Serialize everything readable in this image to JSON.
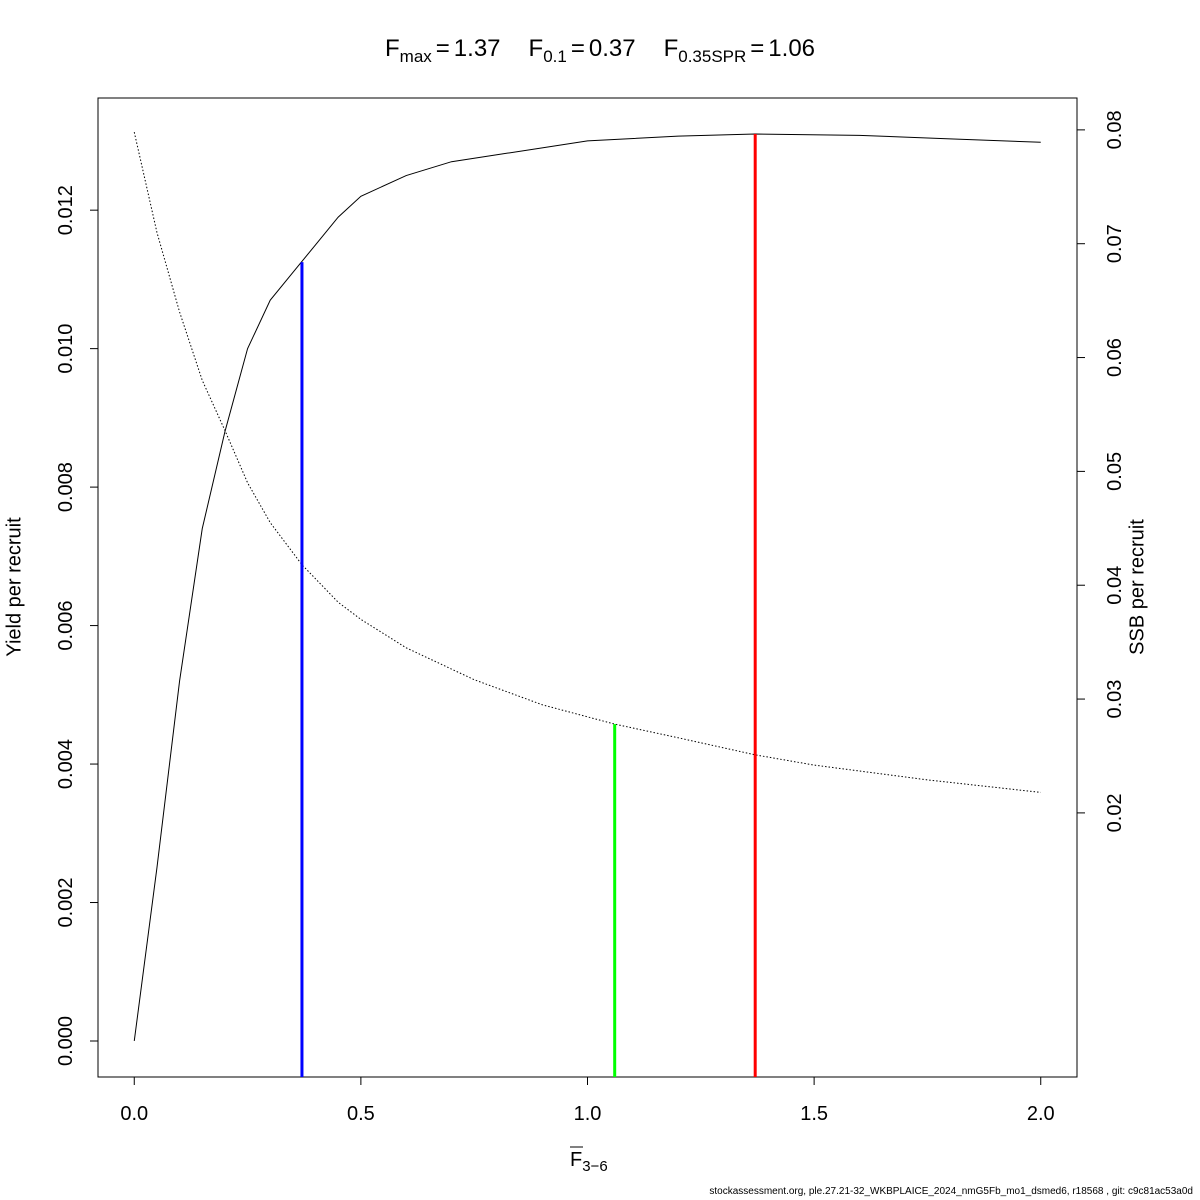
{
  "chart_data": {
    "type": "line",
    "title_parts": [
      {
        "symbol": "F",
        "subscript": "max",
        "relation": "=",
        "value": 1.37
      },
      {
        "symbol": "F",
        "subscript": "0.1",
        "relation": "=",
        "value": 0.37
      },
      {
        "symbol": "F",
        "subscript": "0.35SPR",
        "relation": "=",
        "value": 1.06
      }
    ],
    "x_label": {
      "symbol": "F",
      "subscript": "3−6"
    },
    "y_label": "Yield per recruit",
    "y2_label": "SSB per recruit",
    "footer": "stockassessment.org, ple.27.21-32_WKBPLAICE_2024_nmG5Fb_mo1_dsmed6, r18568 , git: c9c81ac53a0d",
    "xlim": [
      -0.08,
      2.08
    ],
    "ylim": [
      -0.00052,
      0.01362
    ],
    "y2lim": [
      -0.0032,
      0.0828
    ],
    "xticks": [
      {
        "value": 0,
        "label": "0.0"
      },
      0.5,
      {
        "value": 1,
        "label": "1.0"
      },
      1.5,
      {
        "value": 2,
        "label": "2.0"
      }
    ],
    "yticks": [
      {
        "value": 0,
        "label": "0.000"
      },
      {
        "value": 0.002,
        "label": "0.002"
      },
      {
        "value": 0.004,
        "label": "0.004"
      },
      {
        "value": 0.006,
        "label": "0.006"
      },
      {
        "value": 0.008,
        "label": "0.008"
      },
      {
        "value": 0.01,
        "label": "0.010"
      },
      {
        "value": 0.012,
        "label": "0.012"
      }
    ],
    "y2ticks": [
      0.02,
      0.03,
      0.04,
      0.05,
      0.06,
      0.07,
      0.08
    ],
    "series": [
      {
        "color": "#000000",
        "style": "solid",
        "x": [
          0,
          0.05,
          0.1,
          0.15,
          0.2,
          0.25,
          0.3,
          0.35,
          0.4,
          0.45,
          0.5,
          0.6,
          0.7,
          0.8,
          0.9,
          1.0,
          1.2,
          1.37,
          1.6,
          1.8,
          2.0
        ],
        "values": [
          0,
          0.0025,
          0.0052,
          0.0074,
          0.0088,
          0.01,
          0.0107,
          0.0111,
          0.0115,
          0.0119,
          0.0122,
          0.0125,
          0.0127,
          0.0128,
          0.0129,
          0.013,
          0.01307,
          0.0131,
          0.01308,
          0.01303,
          0.01298
        ]
      },
      {
        "color": "#000000",
        "style": "dotted",
        "axis": "y2",
        "x": [
          0,
          0.05,
          0.1,
          0.15,
          0.2,
          0.25,
          0.3,
          0.37,
          0.45,
          0.5,
          0.6,
          0.75,
          0.9,
          1.06,
          1.2,
          1.37,
          1.5,
          1.75,
          2.0
        ],
        "values": [
          0.0798,
          0.071,
          0.064,
          0.058,
          0.0536,
          0.049,
          0.0455,
          0.0418,
          0.0385,
          0.037,
          0.0345,
          0.0317,
          0.0295,
          0.0278,
          0.0266,
          0.0251,
          0.0242,
          0.0229,
          0.0218
        ]
      }
    ],
    "reference_lines": [
      {
        "x": 0.37,
        "y": 0.01125,
        "color": "#0000ff"
      },
      {
        "x": 1.06,
        "y": 0.0278,
        "color": "#00ff00",
        "axis": "y2"
      },
      {
        "x": 1.37,
        "y": 0.0131,
        "color": "#ff0000"
      }
    ]
  }
}
